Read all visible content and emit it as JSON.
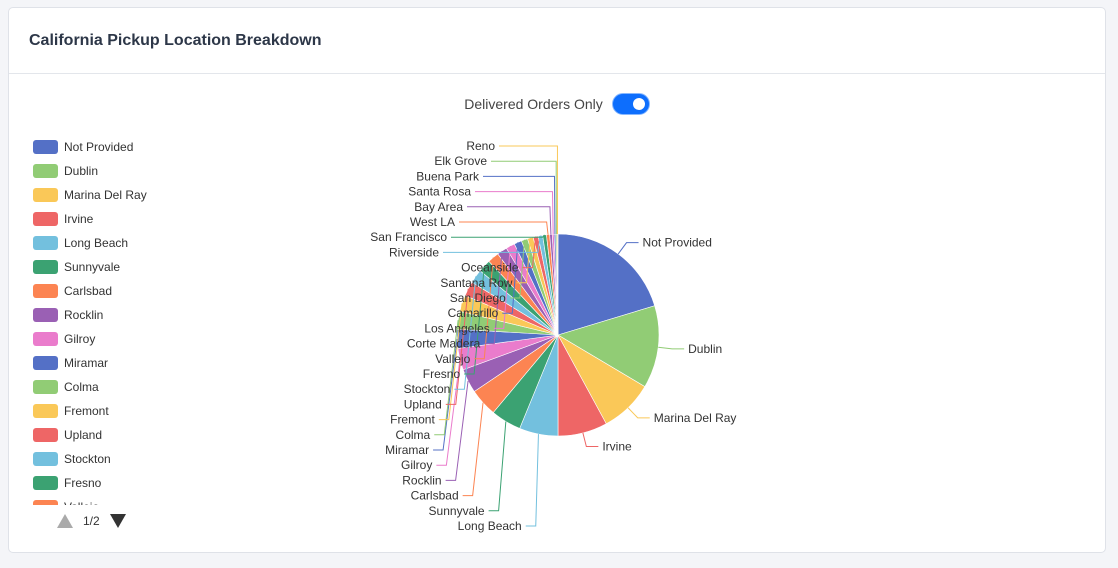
{
  "card": {
    "title": "California Pickup Location Breakdown"
  },
  "toggle": {
    "label": "Delivered Orders Only",
    "checked": true,
    "color": "#0d6efd"
  },
  "legend": {
    "page_text": "1/2",
    "items": [
      {
        "label": "Not Provided",
        "color": "#5470c6"
      },
      {
        "label": "Dublin",
        "color": "#91cc75"
      },
      {
        "label": "Marina Del Ray",
        "color": "#fac858"
      },
      {
        "label": "Irvine",
        "color": "#ee6666"
      },
      {
        "label": "Long Beach",
        "color": "#73c0de"
      },
      {
        "label": "Sunnyvale",
        "color": "#3ba272"
      },
      {
        "label": "Carlsbad",
        "color": "#fc8452"
      },
      {
        "label": "Rocklin",
        "color": "#9a60b4"
      },
      {
        "label": "Gilroy",
        "color": "#ea7ccc"
      },
      {
        "label": "Miramar",
        "color": "#5470c6"
      },
      {
        "label": "Colma",
        "color": "#91cc75"
      },
      {
        "label": "Fremont",
        "color": "#fac858"
      },
      {
        "label": "Upland",
        "color": "#ee6666"
      },
      {
        "label": "Stockton",
        "color": "#73c0de"
      },
      {
        "label": "Fresno",
        "color": "#3ba272"
      },
      {
        "label": "Vallejo",
        "color": "#fc8452"
      }
    ]
  },
  "chart_data": {
    "type": "pie",
    "legend_position": "left",
    "palette": [
      "#5470c6",
      "#91cc75",
      "#fac858",
      "#ee6666",
      "#73c0de",
      "#3ba272",
      "#fc8452",
      "#9a60b4",
      "#ea7ccc"
    ],
    "slices": [
      {
        "name": "Not Provided",
        "value": 20.0
      },
      {
        "name": "Dublin",
        "value": 13.0
      },
      {
        "name": "Marina Del Ray",
        "value": 8.4
      },
      {
        "name": "Irvine",
        "value": 7.8
      },
      {
        "name": "Long Beach",
        "value": 6.1
      },
      {
        "name": "Sunnyvale",
        "value": 4.8
      },
      {
        "name": "Carlsbad",
        "value": 4.4
      },
      {
        "name": "Rocklin",
        "value": 3.8
      },
      {
        "name": "Gilroy",
        "value": 3.4
      },
      {
        "name": "Miramar",
        "value": 3.0
      },
      {
        "name": "Colma",
        "value": 2.8
      },
      {
        "name": "Fremont",
        "value": 2.6
      },
      {
        "name": "Upland",
        "value": 2.3
      },
      {
        "name": "Stockton",
        "value": 2.2
      },
      {
        "name": "Fresno",
        "value": 2.0
      },
      {
        "name": "Vallejo",
        "value": 1.8
      },
      {
        "name": "Corte Madera",
        "value": 1.6
      },
      {
        "name": "Los Angeles",
        "value": 1.4
      },
      {
        "name": "Camarillo",
        "value": 1.2
      },
      {
        "name": "San Diego",
        "value": 1.0
      },
      {
        "name": "Santana Row",
        "value": 0.9
      },
      {
        "name": "Oceanside",
        "value": 0.8
      },
      {
        "name": "Riverside",
        "value": 0.7
      },
      {
        "name": "San Francisco",
        "value": 0.6
      },
      {
        "name": "West LA",
        "value": 0.5
      },
      {
        "name": "Bay Area",
        "value": 0.4
      },
      {
        "name": "Santa Rosa",
        "value": 0.3
      },
      {
        "name": "Buena Park",
        "value": 0.25
      },
      {
        "name": "Elk Grove",
        "value": 0.2
      },
      {
        "name": "Reno",
        "value": 0.15
      }
    ]
  }
}
